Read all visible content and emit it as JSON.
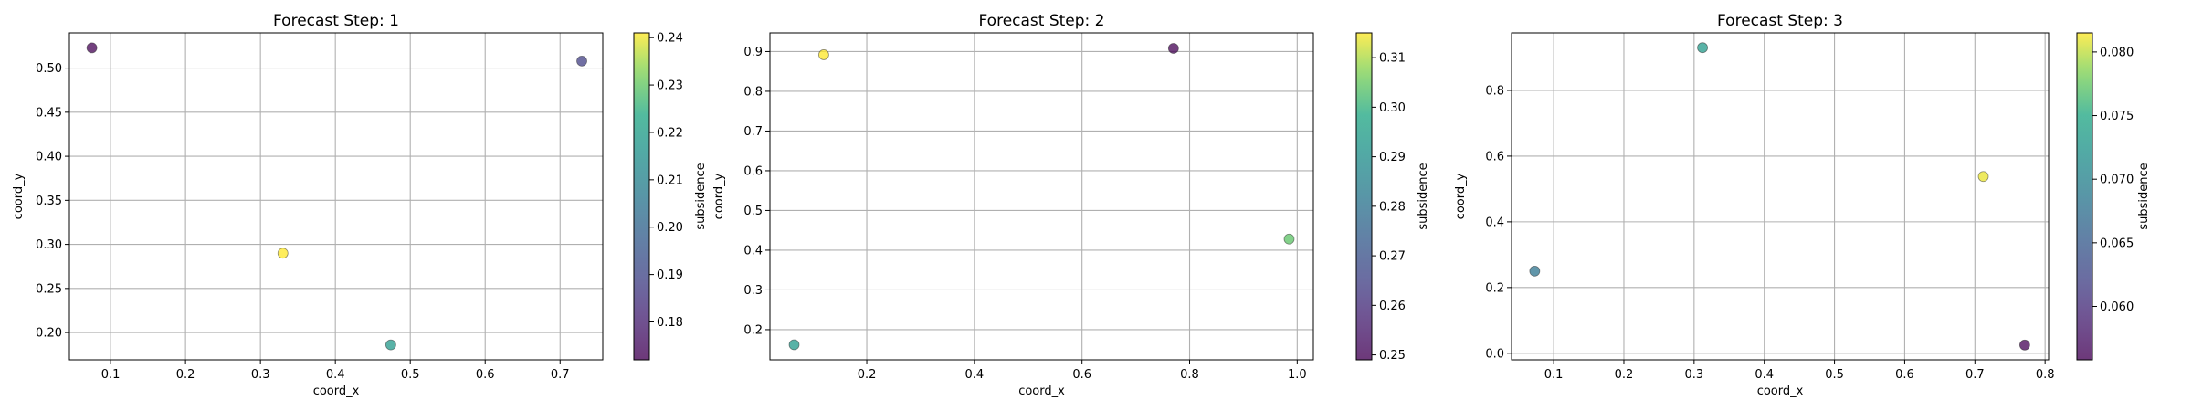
{
  "chart_data": [
    {
      "type": "scatter",
      "title": "Forecast Step: 1",
      "xlabel": "coord_x",
      "ylabel": "coord_y",
      "xlim": [
        0.045,
        0.757
      ],
      "ylim": [
        0.169,
        0.54
      ],
      "xticks": [
        0.1,
        0.2,
        0.3,
        0.4,
        0.5,
        0.6,
        0.7
      ],
      "xtick_labels": [
        "0.1",
        "0.2",
        "0.3",
        "0.4",
        "0.5",
        "0.6",
        "0.7"
      ],
      "yticks": [
        0.2,
        0.25,
        0.3,
        0.35,
        0.4,
        0.45,
        0.5
      ],
      "ytick_labels": [
        "0.20",
        "0.25",
        "0.30",
        "0.35",
        "0.40",
        "0.45",
        "0.50"
      ],
      "grid": true,
      "points": [
        {
          "x": 0.075,
          "y": 0.523,
          "value": 0.172
        },
        {
          "x": 0.729,
          "y": 0.508,
          "value": 0.188
        },
        {
          "x": 0.33,
          "y": 0.29,
          "value": 0.241
        },
        {
          "x": 0.474,
          "y": 0.186,
          "value": 0.218
        }
      ],
      "colorbar": {
        "label": "subsidence",
        "colormap": "viridis",
        "range": [
          0.172,
          0.241
        ],
        "ticks": [
          0.18,
          0.19,
          0.2,
          0.21,
          0.22,
          0.23,
          0.24
        ],
        "tick_labels": [
          "0.18",
          "0.19",
          "0.20",
          "0.21",
          "0.22",
          "0.23",
          "0.24"
        ]
      }
    },
    {
      "type": "scatter",
      "title": "Forecast Step: 2",
      "xlabel": "coord_x",
      "ylabel": "coord_y",
      "xlim": [
        0.02,
        1.03
      ],
      "ylim": [
        0.124,
        0.947
      ],
      "xticks": [
        0.2,
        0.4,
        0.6,
        0.8,
        1.0
      ],
      "xtick_labels": [
        "0.2",
        "0.4",
        "0.6",
        "0.8",
        "1.0"
      ],
      "yticks": [
        0.2,
        0.3,
        0.4,
        0.5,
        0.6,
        0.7,
        0.8,
        0.9
      ],
      "ytick_labels": [
        "0.2",
        "0.3",
        "0.4",
        "0.5",
        "0.6",
        "0.7",
        "0.8",
        "0.9"
      ],
      "grid": true,
      "points": [
        {
          "x": 0.12,
          "y": 0.892,
          "value": 0.315
        },
        {
          "x": 0.77,
          "y": 0.908,
          "value": 0.249
        },
        {
          "x": 0.985,
          "y": 0.428,
          "value": 0.304
        },
        {
          "x": 0.065,
          "y": 0.162,
          "value": 0.293
        }
      ],
      "colorbar": {
        "label": "subsidence",
        "colormap": "viridis",
        "range": [
          0.249,
          0.315
        ],
        "ticks": [
          0.25,
          0.26,
          0.27,
          0.28,
          0.29,
          0.3,
          0.31
        ],
        "tick_labels": [
          "0.25",
          "0.26",
          "0.27",
          "0.28",
          "0.29",
          "0.30",
          "0.31"
        ]
      }
    },
    {
      "type": "scatter",
      "title": "Forecast Step: 3",
      "xlabel": "coord_x",
      "ylabel": "coord_y",
      "xlim": [
        0.04,
        0.805
      ],
      "ylim": [
        -0.02,
        0.975
      ],
      "xticks": [
        0.1,
        0.2,
        0.3,
        0.4,
        0.5,
        0.6,
        0.7,
        0.8
      ],
      "xtick_labels": [
        "0.1",
        "0.2",
        "0.3",
        "0.4",
        "0.5",
        "0.6",
        "0.7",
        "0.8"
      ],
      "yticks": [
        0.0,
        0.2,
        0.4,
        0.6,
        0.8
      ],
      "ytick_labels": [
        "0.0",
        "0.2",
        "0.4",
        "0.6",
        "0.8"
      ],
      "grid": true,
      "points": [
        {
          "x": 0.312,
          "y": 0.93,
          "value": 0.073
        },
        {
          "x": 0.712,
          "y": 0.538,
          "value": 0.081
        },
        {
          "x": 0.073,
          "y": 0.25,
          "value": 0.068
        },
        {
          "x": 0.771,
          "y": 0.025,
          "value": 0.056
        }
      ],
      "colorbar": {
        "label": "subsidence",
        "colormap": "viridis",
        "range": [
          0.0558,
          0.0815
        ],
        "ticks": [
          0.06,
          0.065,
          0.07,
          0.075,
          0.08
        ],
        "tick_labels": [
          "0.060",
          "0.065",
          "0.070",
          "0.075",
          "0.080"
        ]
      }
    }
  ]
}
